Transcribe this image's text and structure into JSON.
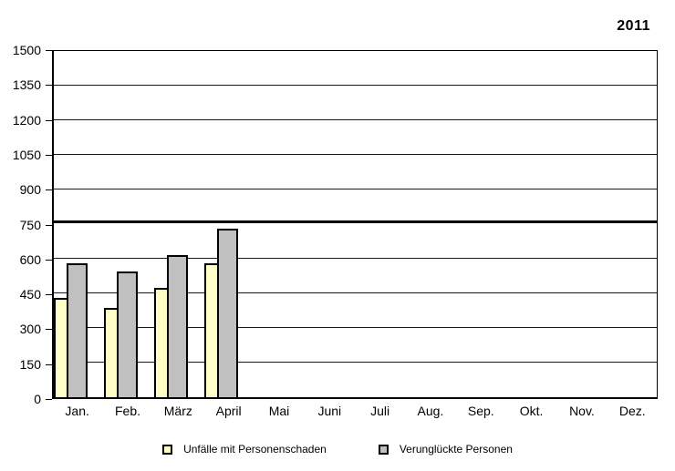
{
  "title": "2011",
  "colors": {
    "accidents_fill": "#FFFFC6",
    "casualties_fill": "#C0C0C0",
    "axis": "#000000",
    "grid": "#1a1a1a",
    "background": "#FFFFFF"
  },
  "chart_data": {
    "type": "bar",
    "title": "2011",
    "categories": [
      "Jan.",
      "Feb.",
      "März",
      "April",
      "Mai",
      "Juni",
      "Juli",
      "Aug.",
      "Sep.",
      "Okt.",
      "Nov.",
      "Dez."
    ],
    "series": [
      {
        "name": "Unfälle mit Personenschaden",
        "color": "#FFFFC6",
        "values": [
          430,
          385,
          475,
          580,
          null,
          null,
          null,
          null,
          null,
          null,
          null,
          null
        ]
      },
      {
        "name": "Verunglückte Personen",
        "color": "#C0C0C0",
        "values": [
          580,
          545,
          615,
          730,
          null,
          null,
          null,
          null,
          null,
          null,
          null,
          null
        ]
      }
    ],
    "xlabel": "",
    "ylabel": "",
    "ylim": [
      0,
      1500
    ],
    "ytick_step": 150,
    "yticks": [
      0,
      150,
      300,
      450,
      600,
      750,
      900,
      1050,
      1200,
      1350,
      1500
    ],
    "emphasized_gridline": 750,
    "grid": true,
    "legend_position": "bottom"
  },
  "legend": {
    "items": [
      {
        "label": "Unfälle mit Personenschaden",
        "color": "#FFFFC6"
      },
      {
        "label": "Verunglückte Personen",
        "color": "#C0C0C0"
      }
    ]
  }
}
